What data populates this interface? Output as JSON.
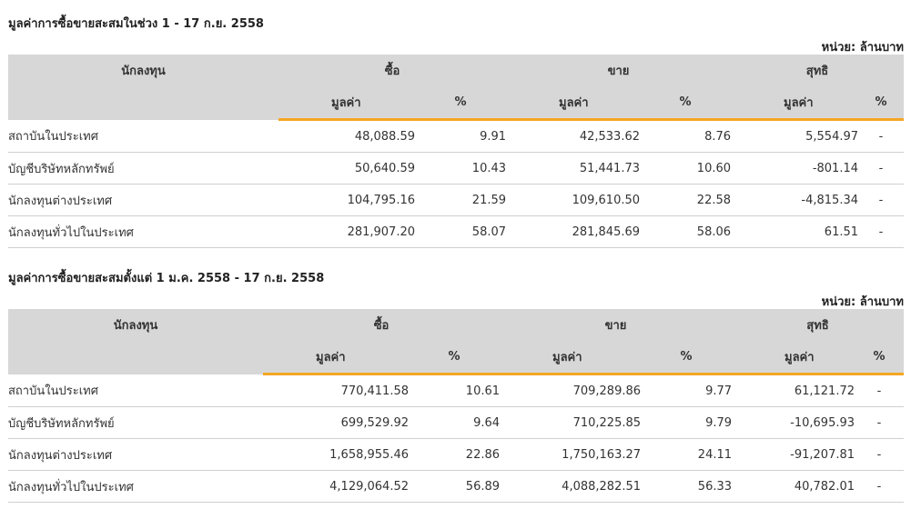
{
  "sections": [
    {
      "title": "มูลค่าการซื้อขายสะสมในช่วง 1 - 17 ก.ย. 2558",
      "unit": "หน่วย: ล้านบาท",
      "headers": {
        "investor": "นักลงทุน",
        "buy": "ซื้อ",
        "sell": "ขาย",
        "net": "สุทธิ",
        "value": "มูลค่า",
        "percent": "%"
      },
      "rows": [
        {
          "investor": "สถาบันในประเทศ",
          "buy_value": "48,088.59",
          "buy_pct": "9.91",
          "sell_value": "42,533.62",
          "sell_pct": "8.76",
          "net_value": "5,554.97",
          "net_pct": "-",
          "net_sign": "positive"
        },
        {
          "investor": "บัญชีบริษัทหลักทรัพย์",
          "buy_value": "50,640.59",
          "buy_pct": "10.43",
          "sell_value": "51,441.73",
          "sell_pct": "10.60",
          "net_value": "-801.14",
          "net_pct": "-",
          "net_sign": "negative"
        },
        {
          "investor": "นักลงทุนต่างประเทศ",
          "buy_value": "104,795.16",
          "buy_pct": "21.59",
          "sell_value": "109,610.50",
          "sell_pct": "22.58",
          "net_value": "-4,815.34",
          "net_pct": "-",
          "net_sign": "negative"
        },
        {
          "investor": "นักลงทุนทั่วไปในประเทศ",
          "buy_value": "281,907.20",
          "buy_pct": "58.07",
          "sell_value": "281,845.69",
          "sell_pct": "58.06",
          "net_value": "61.51",
          "net_pct": "-",
          "net_sign": "positive"
        }
      ]
    },
    {
      "title": "มูลค่าการซื้อขายสะสมตั้งแต่ 1 ม.ค. 2558 - 17 ก.ย. 2558",
      "unit": "หน่วย: ล้านบาท",
      "headers": {
        "investor": "นักลงทุน",
        "buy": "ซื้อ",
        "sell": "ขาย",
        "net": "สุทธิ",
        "value": "มูลค่า",
        "percent": "%"
      },
      "rows": [
        {
          "investor": "สถาบันในประเทศ",
          "buy_value": "770,411.58",
          "buy_pct": "10.61",
          "sell_value": "709,289.86",
          "sell_pct": "9.77",
          "net_value": "61,121.72",
          "net_pct": "-",
          "net_sign": "positive"
        },
        {
          "investor": "บัญชีบริษัทหลักทรัพย์",
          "buy_value": "699,529.92",
          "buy_pct": "9.64",
          "sell_value": "710,225.85",
          "sell_pct": "9.79",
          "net_value": "-10,695.93",
          "net_pct": "-",
          "net_sign": "negative"
        },
        {
          "investor": "นักลงทุนต่างประเทศ",
          "buy_value": "1,658,955.46",
          "buy_pct": "22.86",
          "sell_value": "1,750,163.27",
          "sell_pct": "24.11",
          "net_value": "-91,207.81",
          "net_pct": "-",
          "net_sign": "negative"
        },
        {
          "investor": "นักลงทุนทั่วไปในประเทศ",
          "buy_value": "4,129,064.52",
          "buy_pct": "56.89",
          "sell_value": "4,088,282.51",
          "sell_pct": "56.33",
          "net_value": "40,782.01",
          "net_pct": "-",
          "net_sign": "positive"
        }
      ]
    }
  ],
  "colors": {
    "positive": "#3c9c3c",
    "negative": "#e02424",
    "header_bg": "#d7d7d7",
    "accent_underline": "#f5a623"
  }
}
